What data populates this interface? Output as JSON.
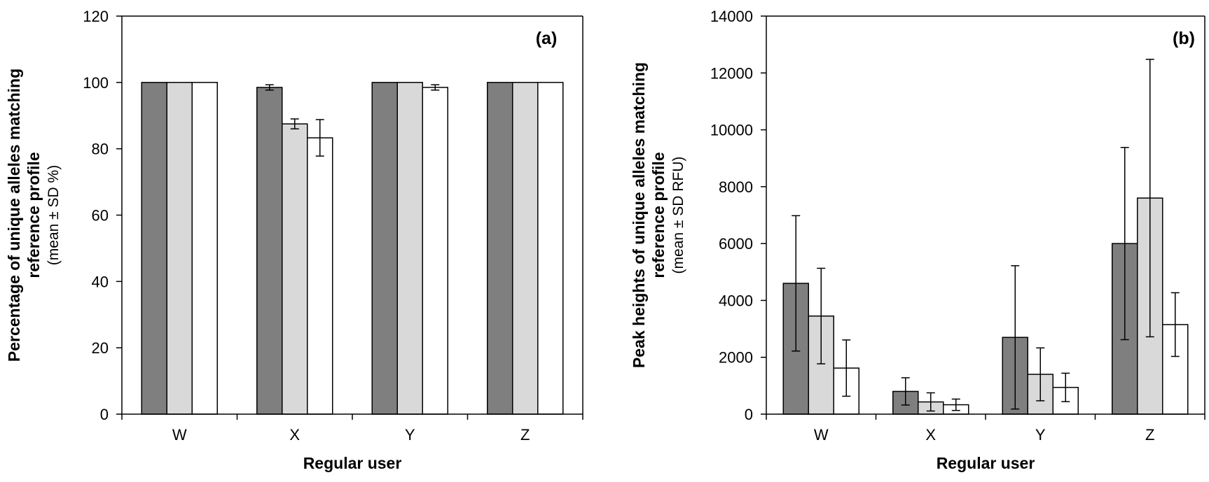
{
  "chart_data": [
    {
      "type": "bar",
      "panel_label": "(a)",
      "categories": [
        "W",
        "X",
        "Y",
        "Z"
      ],
      "xlabel": "Regular user",
      "ylabel_lines": [
        "Percentage of unique alleles matching",
        "reference profile"
      ],
      "ylabel_sub": "(mean ± SD %)",
      "ylim": [
        0,
        120
      ],
      "yticks": [
        0,
        20,
        40,
        60,
        80,
        100,
        120
      ],
      "series": [
        {
          "color": "#7f7f7f",
          "values": [
            100,
            98.5,
            100,
            100
          ],
          "errors": [
            0,
            0.8,
            0,
            0
          ]
        },
        {
          "color": "#d9d9d9",
          "values": [
            100,
            87.5,
            100,
            100
          ],
          "errors": [
            0,
            1.5,
            0,
            0
          ]
        },
        {
          "color": "#ffffff",
          "values": [
            100,
            83.3,
            98.5,
            100
          ],
          "errors": [
            0,
            5.5,
            0.8,
            0
          ]
        }
      ]
    },
    {
      "type": "bar",
      "panel_label": "(b)",
      "categories": [
        "W",
        "X",
        "Y",
        "Z"
      ],
      "xlabel": "Regular user",
      "ylabel_lines": [
        "Peak heights of unique alleles matching",
        "reference profile"
      ],
      "ylabel_sub": "(mean ± SD RFU)",
      "ylim": [
        0,
        14000
      ],
      "yticks": [
        0,
        2000,
        4000,
        6000,
        8000,
        10000,
        12000,
        14000
      ],
      "series": [
        {
          "color": "#7f7f7f",
          "values": [
            4600,
            800,
            2700,
            6000
          ],
          "errors": [
            2380,
            480,
            2520,
            3380
          ]
        },
        {
          "color": "#d9d9d9",
          "values": [
            3450,
            430,
            1400,
            7600
          ],
          "errors": [
            1680,
            320,
            930,
            4880
          ]
        },
        {
          "color": "#ffffff",
          "values": [
            1620,
            330,
            940,
            3150
          ],
          "errors": [
            990,
            200,
            500,
            1120
          ]
        }
      ]
    }
  ]
}
